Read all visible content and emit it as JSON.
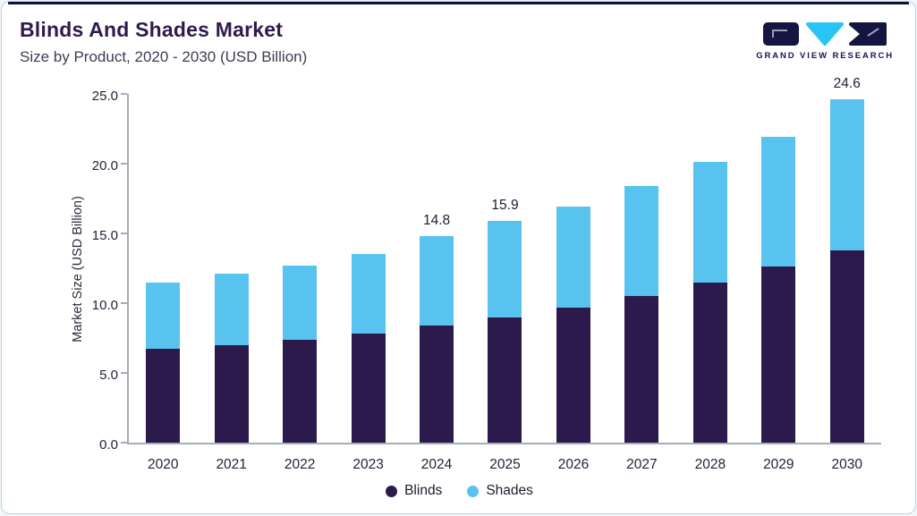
{
  "header": {
    "title": "Blinds And Shades Market",
    "subtitle": "Size by Product, 2020 - 2030 (USD Billion)",
    "brand": "GRAND VIEW RESEARCH"
  },
  "chart_data": {
    "type": "bar",
    "stacked": true,
    "title": "Blinds And Shades Market Size by Product, 2020 - 2030 (USD Billion)",
    "categories": [
      "2020",
      "2021",
      "2022",
      "2023",
      "2024",
      "2025",
      "2026",
      "2027",
      "2028",
      "2029",
      "2030"
    ],
    "series": [
      {
        "name": "Blinds",
        "color": "#2c1a4d",
        "values": [
          6.7,
          7.0,
          7.4,
          7.8,
          8.4,
          9.0,
          9.7,
          10.5,
          11.5,
          12.6,
          13.8
        ]
      },
      {
        "name": "Shades",
        "color": "#59c3f0",
        "values": [
          4.8,
          5.1,
          5.3,
          5.7,
          6.4,
          6.9,
          7.2,
          7.9,
          8.6,
          9.3,
          10.8
        ]
      }
    ],
    "totals": [
      11.5,
      12.1,
      12.7,
      13.5,
      14.8,
      15.9,
      16.9,
      18.4,
      20.1,
      21.9,
      24.6
    ],
    "totals_labels": [
      "",
      "",
      "",
      "",
      "14.8",
      "15.9",
      "",
      "",
      "",
      "",
      "24.6"
    ],
    "xlabel": "",
    "ylabel": "Market Size (USD Billion)",
    "ylim": [
      0,
      25
    ],
    "yticks": [
      "0.0",
      "5.0",
      "10.0",
      "15.0",
      "20.0",
      "25.0"
    ],
    "grid": false,
    "legend_position": "bottom",
    "colors": {
      "accent_dark": "#2c1a4d",
      "accent_blue": "#59c3f0",
      "title": "#2f1b4c",
      "border": "#b7d4e4"
    }
  }
}
